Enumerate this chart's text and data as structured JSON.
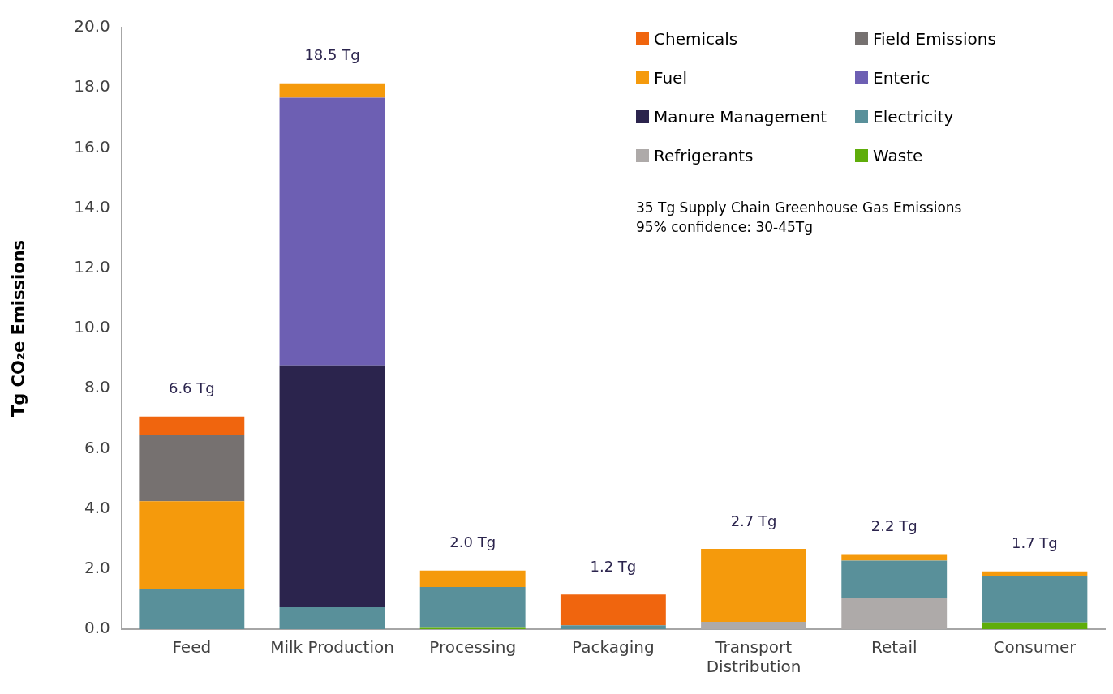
{
  "chart_data": {
    "type": "bar",
    "stacked": true,
    "ylabel": "Tg CO₂e Emissions",
    "categories": [
      "Feed",
      "Milk Production",
      "Processing",
      "Packaging",
      "Transport Distribution",
      "Retail",
      "Consumer"
    ],
    "series": [
      {
        "name": "Waste",
        "color": "#5fad0a",
        "values": [
          0,
          0,
          0.07,
          0,
          0,
          0,
          0.22
        ]
      },
      {
        "name": "Refrigerants",
        "color": "#aeaaa9",
        "values": [
          0,
          0,
          0,
          0,
          0.24,
          1.05,
          0
        ]
      },
      {
        "name": "Electricity",
        "color": "#59909a",
        "values": [
          1.35,
          0.73,
          1.33,
          0.13,
          0,
          1.23,
          1.55
        ]
      },
      {
        "name": "Manure Management",
        "color": "#2b244d",
        "values": [
          0,
          8.04,
          0,
          0,
          0,
          0,
          0
        ]
      },
      {
        "name": "Enteric",
        "color": "#6d5fb3",
        "values": [
          0,
          8.9,
          0,
          0,
          0,
          0,
          0
        ]
      },
      {
        "name": "Fuel",
        "color": "#f59a0c",
        "values": [
          2.9,
          0.48,
          0.55,
          0,
          2.43,
          0.21,
          0.15
        ]
      },
      {
        "name": "Field Emissions",
        "color": "#767170",
        "values": [
          2.21,
          0,
          0,
          0,
          0,
          0,
          0
        ]
      },
      {
        "name": "Chemicals",
        "color": "#f0650e",
        "values": [
          0.61,
          0,
          0,
          1.02,
          0,
          0,
          0
        ]
      }
    ],
    "ylim": [
      0,
      20
    ],
    "yticks": [
      {
        "value": 0,
        "label": "0.0"
      },
      {
        "value": 2,
        "label": "2.0"
      },
      {
        "value": 4,
        "label": "4.0"
      },
      {
        "value": 6,
        "label": "6.0"
      },
      {
        "value": 8,
        "label": "8.0"
      },
      {
        "value": 10,
        "label": "10.0"
      },
      {
        "value": 12,
        "label": "12.0"
      },
      {
        "value": 14,
        "label": "14.0"
      },
      {
        "value": 16,
        "label": "16.0"
      },
      {
        "value": 18,
        "label": "18.0"
      },
      {
        "value": 20,
        "label": "20.0"
      }
    ],
    "grid": false,
    "legend": "top right",
    "annotations": [
      "35 Tg Supply Chain Greenhouse Gas Emissions",
      "95% confidence: 30-45Tg",
      {
        "text": "6.6 Tg",
        "x": "Feed",
        "y": 7.07
      },
      {
        "text": "18.5 Tg",
        "x": "Milk Production",
        "y": 18.15
      },
      {
        "text": "2.0 Tg",
        "x": "Processing",
        "y": 1.95
      },
      {
        "text": "1.2 Tg",
        "x": "Packaging",
        "y": 1.15
      },
      {
        "text": "2.7 Tg",
        "x": "Transport Distribution",
        "y": 2.67
      },
      {
        "text": "2.2 Tg",
        "x": "Retail",
        "y": 2.49
      },
      {
        "text": "1.7 Tg",
        "x": "Consumer",
        "y": 1.92
      }
    ]
  }
}
